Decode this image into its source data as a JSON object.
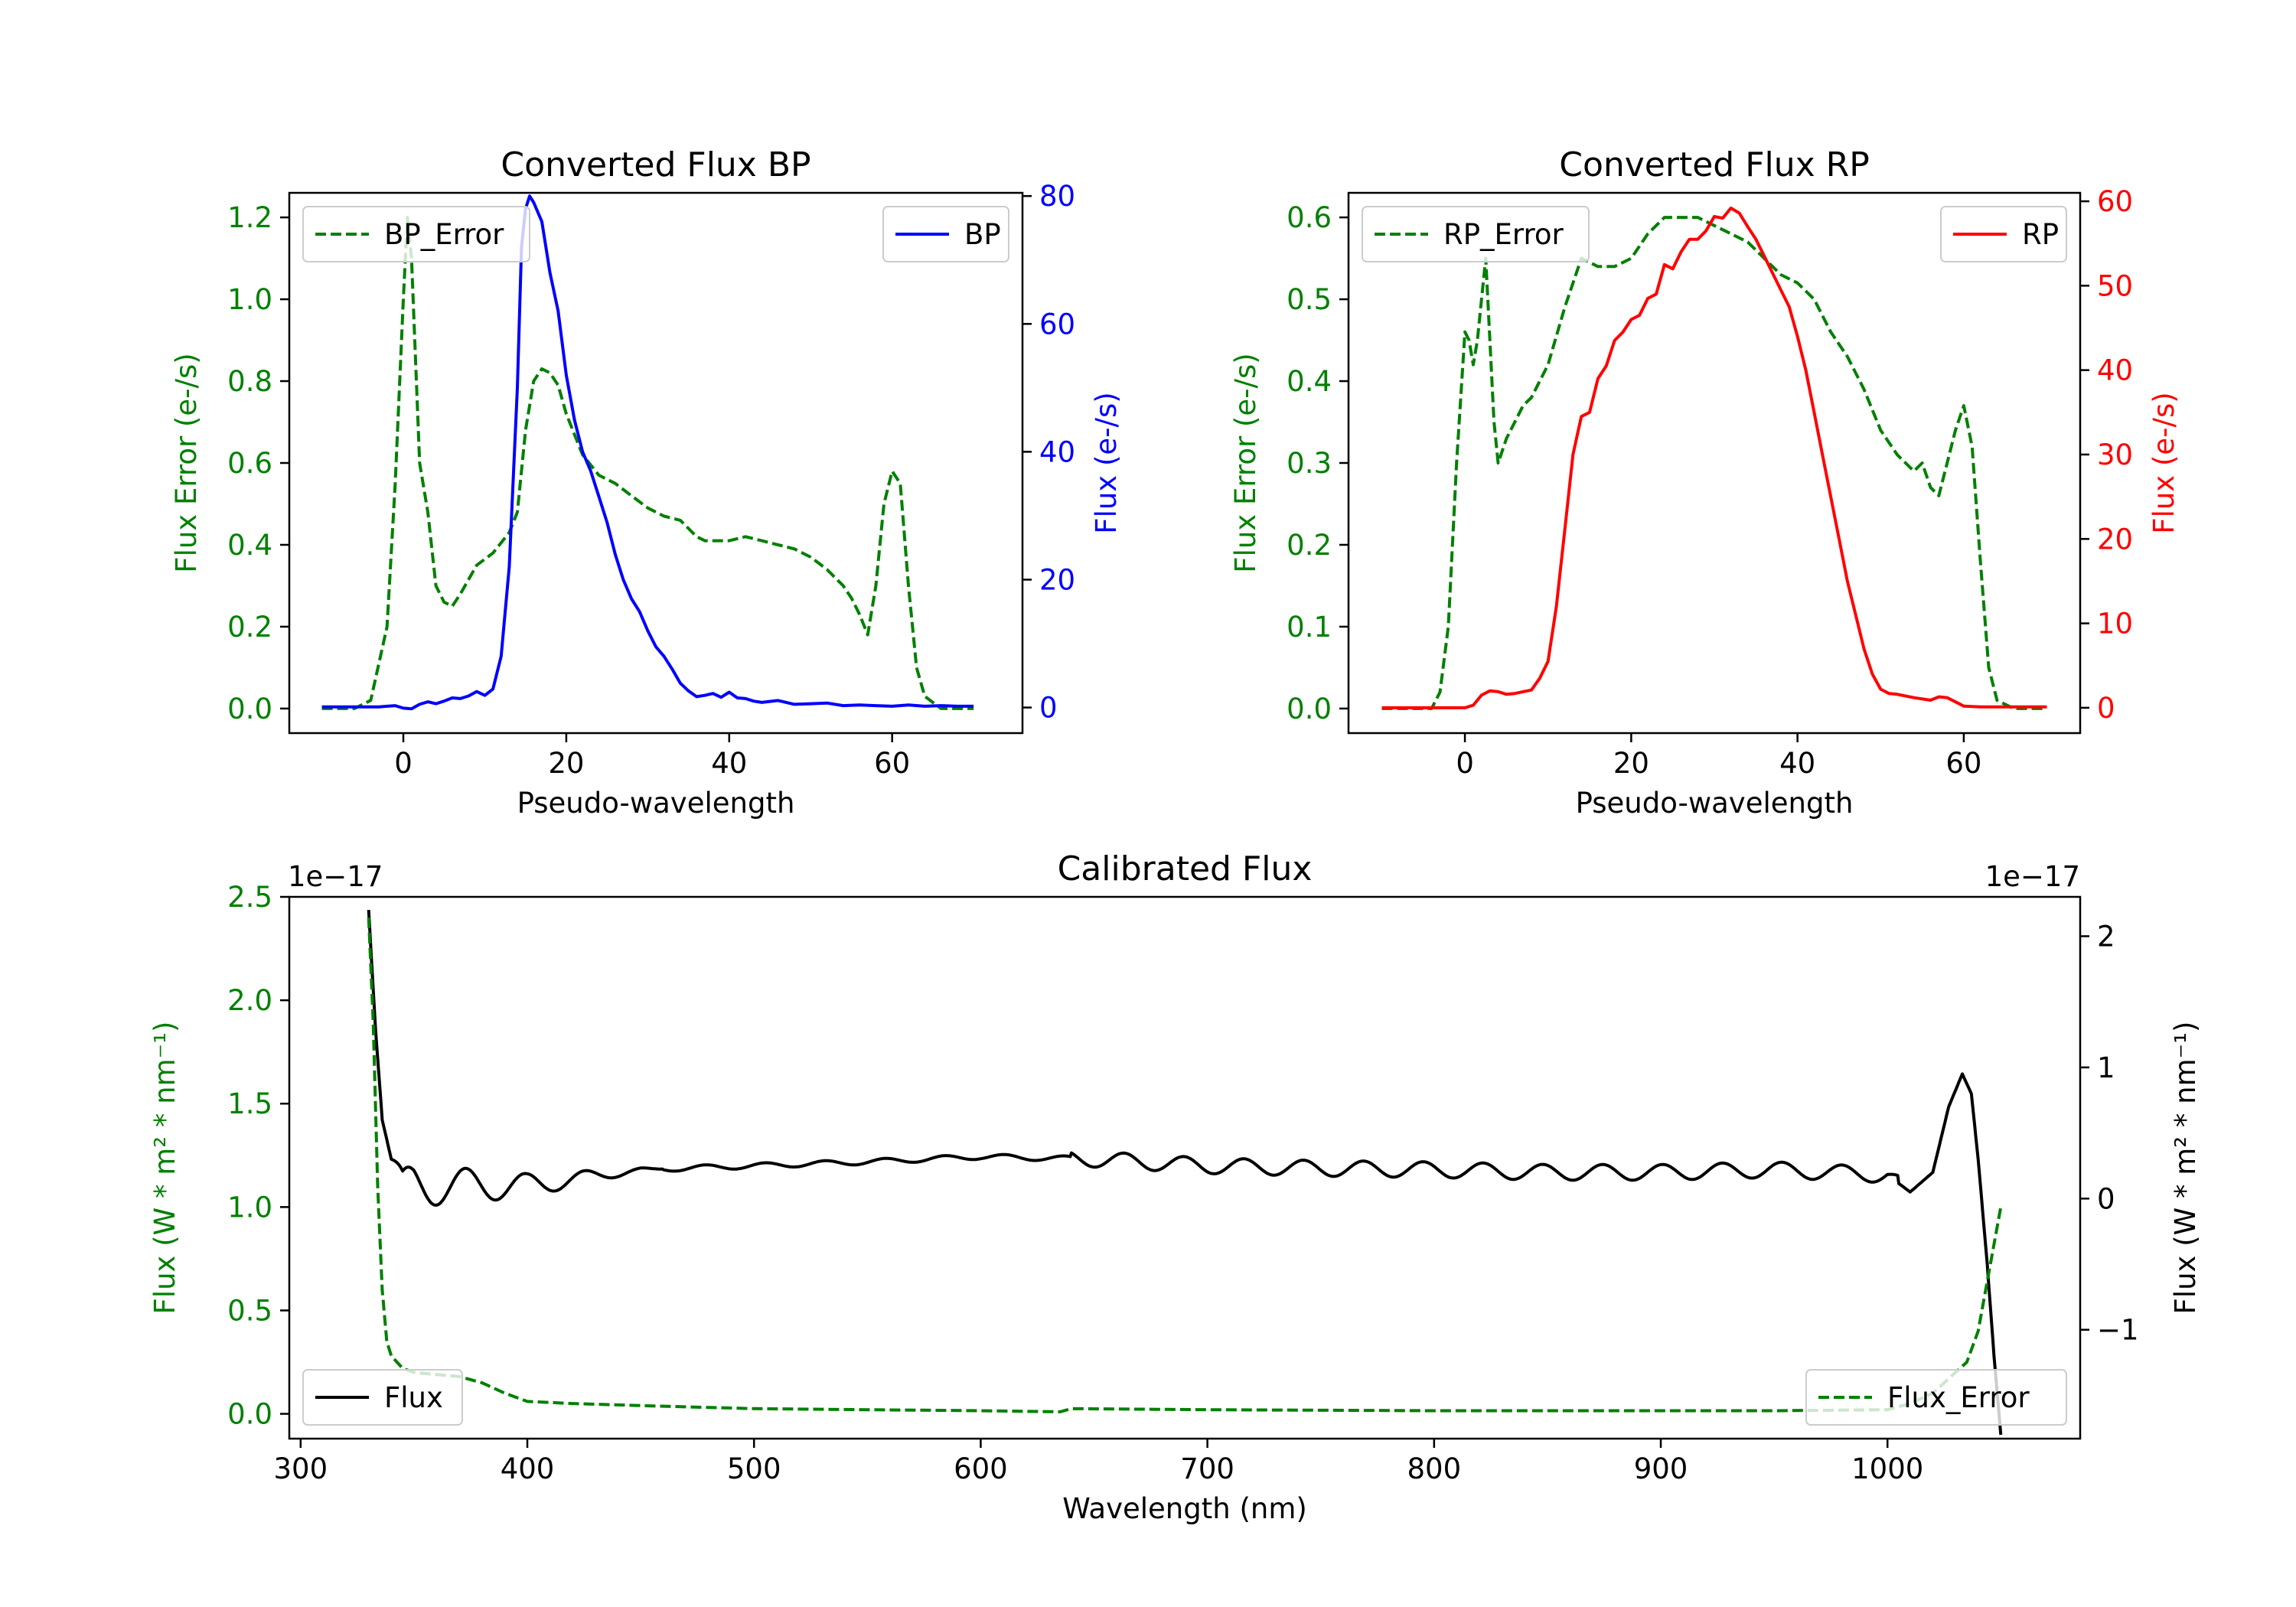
{
  "chart_data": [
    {
      "type": "line",
      "title": "Converted Flux BP",
      "xlabel": "Pseudo-wavelength",
      "xlim": [
        -14,
        76
      ],
      "xticks": [
        0,
        20,
        40,
        60
      ],
      "left_axis": {
        "label": "Flux Error (e-/s)",
        "color": "#008000",
        "ylim": [
          -0.06,
          1.26
        ],
        "ticks": [
          "0.0",
          "0.2",
          "0.4",
          "0.6",
          "0.8",
          "1.0",
          "1.2"
        ],
        "tick_values": [
          0.0,
          0.2,
          0.4,
          0.6,
          0.8,
          1.0,
          1.2
        ]
      },
      "right_axis": {
        "label": "Flux (e-/s)",
        "color": "#0000ff",
        "ylim": [
          -4,
          80.5
        ],
        "ticks": [
          "0",
          "20",
          "40",
          "60",
          "80"
        ],
        "tick_values": [
          0,
          20,
          40,
          60,
          80
        ]
      },
      "series": [
        {
          "name": "BP_Error",
          "axis": "left",
          "style": "dashed",
          "color": "#008000",
          "legend": "top-left",
          "x": [
            -10,
            -6,
            -4,
            -2,
            -1,
            0,
            0.5,
            1,
            1.5,
            2,
            3,
            4,
            5,
            6,
            7,
            9,
            11,
            13,
            14,
            15,
            16,
            17,
            18,
            19,
            20,
            22,
            24,
            26,
            28,
            30,
            32,
            34,
            36,
            37,
            38,
            40,
            42,
            44,
            46,
            48,
            50,
            52,
            54,
            55,
            56,
            57,
            58,
            59,
            60,
            61,
            62,
            63,
            64,
            66,
            68,
            70
          ],
          "values": [
            0.0,
            0.0,
            0.02,
            0.2,
            0.55,
            1.0,
            1.2,
            1.1,
            0.85,
            0.6,
            0.48,
            0.3,
            0.26,
            0.25,
            0.28,
            0.35,
            0.38,
            0.43,
            0.48,
            0.68,
            0.8,
            0.83,
            0.82,
            0.79,
            0.72,
            0.62,
            0.57,
            0.55,
            0.52,
            0.49,
            0.47,
            0.46,
            0.42,
            0.41,
            0.41,
            0.41,
            0.42,
            0.41,
            0.4,
            0.39,
            0.37,
            0.34,
            0.3,
            0.27,
            0.23,
            0.18,
            0.3,
            0.5,
            0.58,
            0.55,
            0.3,
            0.1,
            0.03,
            0.0,
            0.0,
            0.0
          ]
        },
        {
          "name": "BP",
          "axis": "right",
          "style": "solid",
          "color": "#0000ff",
          "legend": "top-right",
          "x": [
            -10,
            -6,
            -3,
            -1,
            0,
            1,
            2,
            3,
            4,
            5,
            6,
            7,
            8,
            9,
            10,
            11,
            12,
            13,
            14,
            14.5,
            15,
            15.5,
            16,
            17,
            18,
            19,
            20,
            21,
            22,
            23,
            24,
            25,
            26,
            27,
            28,
            29,
            30,
            31,
            32,
            33,
            34,
            35,
            36,
            37,
            38,
            39,
            40,
            41,
            42,
            43,
            44,
            46,
            48,
            50,
            52,
            54,
            56,
            58,
            60,
            62,
            64,
            66,
            68,
            70
          ],
          "values": [
            0.1,
            0.1,
            0.1,
            0.3,
            -0.1,
            -0.2,
            0.5,
            0.9,
            0.6,
            1.0,
            1.5,
            1.4,
            1.8,
            2.5,
            1.9,
            2.9,
            8.0,
            22,
            50,
            72,
            78,
            80,
            79,
            76,
            68,
            62,
            52,
            45,
            40,
            37,
            33,
            29,
            24,
            20,
            17,
            15,
            12,
            9.5,
            8.0,
            6.0,
            3.8,
            2.6,
            1.7,
            1.9,
            2.2,
            1.6,
            2.4,
            1.5,
            1.4,
            1.0,
            0.8,
            1.1,
            0.5,
            0.6,
            0.7,
            0.3,
            0.4,
            0.3,
            0.2,
            0.4,
            0.2,
            0.3,
            0.2,
            0.2
          ]
        }
      ],
      "legend_entries": [
        "BP_Error",
        "BP"
      ]
    },
    {
      "type": "line",
      "title": "Converted Flux RP",
      "xlabel": "Pseudo-wavelength",
      "xlim": [
        -14,
        74
      ],
      "xticks": [
        0,
        20,
        40,
        60
      ],
      "left_axis": {
        "label": "Flux Error (e-/s)",
        "color": "#008000",
        "ylim": [
          -0.03,
          0.63
        ],
        "ticks": [
          "0.0",
          "0.1",
          "0.2",
          "0.3",
          "0.4",
          "0.5",
          "0.6"
        ],
        "tick_values": [
          0.0,
          0.1,
          0.2,
          0.3,
          0.4,
          0.5,
          0.6
        ]
      },
      "right_axis": {
        "label": "Flux (e-/s)",
        "color": "#ff0000",
        "ylim": [
          -3,
          61
        ],
        "ticks": [
          "0",
          "10",
          "20",
          "30",
          "40",
          "50",
          "60"
        ],
        "tick_values": [
          0,
          10,
          20,
          30,
          40,
          50,
          60
        ]
      },
      "series": [
        {
          "name": "RP_Error",
          "axis": "left",
          "style": "dashed",
          "color": "#008000",
          "legend": "top-left",
          "x": [
            -10,
            -6,
            -4,
            -3,
            -2,
            -1,
            0,
            0.5,
            1,
            1.5,
            2,
            2.5,
            3,
            3.5,
            4,
            5,
            6,
            7,
            8,
            10,
            12,
            14,
            16,
            18,
            20,
            22,
            24,
            26,
            28,
            30,
            32,
            34,
            36,
            38,
            40,
            42,
            44,
            46,
            48,
            50,
            52,
            54,
            55,
            56,
            57,
            58,
            59,
            60,
            61,
            62,
            63,
            64,
            66,
            68,
            70
          ],
          "values": [
            0.0,
            0.0,
            0.0,
            0.02,
            0.1,
            0.3,
            0.46,
            0.45,
            0.42,
            0.45,
            0.5,
            0.55,
            0.45,
            0.35,
            0.3,
            0.33,
            0.35,
            0.37,
            0.38,
            0.42,
            0.49,
            0.55,
            0.54,
            0.54,
            0.55,
            0.58,
            0.6,
            0.6,
            0.6,
            0.59,
            0.58,
            0.57,
            0.55,
            0.53,
            0.52,
            0.5,
            0.46,
            0.43,
            0.39,
            0.34,
            0.31,
            0.29,
            0.3,
            0.27,
            0.26,
            0.3,
            0.34,
            0.37,
            0.32,
            0.18,
            0.05,
            0.01,
            0.0,
            0.0,
            0.0
          ]
        },
        {
          "name": "RP",
          "axis": "right",
          "style": "solid",
          "color": "#ff0000",
          "legend": "top-right",
          "x": [
            -10,
            -4,
            0,
            1,
            2,
            3,
            4,
            5,
            6,
            8,
            9,
            10,
            11,
            12,
            13,
            14,
            15,
            16,
            17,
            18,
            19,
            20,
            21,
            22,
            23,
            24,
            25,
            26,
            27,
            28,
            29,
            30,
            31,
            32,
            33,
            34,
            35,
            36,
            37,
            38,
            39,
            40,
            41,
            42,
            43,
            44,
            45,
            46,
            47,
            48,
            49,
            50,
            51,
            52,
            54,
            56,
            57,
            58,
            60,
            62,
            64,
            66,
            68,
            70
          ],
          "values": [
            0,
            0,
            0,
            0.3,
            1.5,
            2.0,
            1.9,
            1.6,
            1.7,
            2.1,
            3.5,
            5.5,
            12,
            21,
            30,
            34.5,
            35,
            39,
            40.5,
            43.5,
            44.5,
            46,
            46.5,
            48.5,
            49,
            52.5,
            52,
            54,
            55.5,
            55.5,
            56.5,
            58.2,
            58,
            59.2,
            58.6,
            57,
            55.5,
            53.5,
            51.5,
            49.5,
            47.5,
            44,
            40,
            35,
            30,
            25,
            20,
            15,
            11,
            7,
            4,
            2.2,
            1.7,
            1.6,
            1.2,
            0.9,
            1.3,
            1.2,
            0.2,
            0.1,
            0.1,
            0.1,
            0.1,
            0.1
          ]
        }
      ],
      "legend_entries": [
        "RP_Error",
        "RP"
      ]
    },
    {
      "type": "line",
      "title": "Calibrated Flux",
      "xlabel": "Wavelength (nm)",
      "xlim": [
        295,
        1085
      ],
      "xticks": [
        300,
        400,
        500,
        600,
        700,
        800,
        900,
        1000
      ],
      "left_axis": {
        "label": "Flux (W * m² * nm⁻¹)",
        "color": "#008000",
        "offset_label": "1e−17",
        "ylim": [
          -0.12,
          2.5
        ],
        "ticks": [
          "0.0",
          "0.5",
          "1.0",
          "1.5",
          "2.0",
          "2.5"
        ],
        "tick_values": [
          0.0,
          0.5,
          1.0,
          1.5,
          2.0,
          2.5
        ]
      },
      "right_axis": {
        "label": "Flux (W * m² * nm⁻¹)",
        "color": "#000000",
        "offset_label": "1e−17",
        "ylim": [
          -1.83,
          2.3
        ],
        "ticks": [
          "−1",
          "0",
          "1",
          "2"
        ],
        "tick_values": [
          -1,
          0,
          1,
          2
        ]
      },
      "series": [
        {
          "name": "Flux",
          "axis": "right",
          "style": "solid",
          "color": "#000000",
          "legend": "bottom-left",
          "generator": "oscillating flux around 0.25e-17 with ripple near 330-450 nm and 650-1010 nm, peak ~0.95e-17 at 1033 nm, falling to -1.8e-17 at 1050 nm",
          "x": [
            330,
            333,
            336,
            340,
            345,
            350,
            400,
            450,
            500,
            550,
            600,
            650,
            700,
            750,
            800,
            850,
            900,
            950,
            1000,
            1010,
            1020,
            1027,
            1033,
            1037,
            1040,
            1044,
            1047,
            1050
          ],
          "values": [
            2.2,
            1.3,
            0.6,
            0.3,
            0.05,
            0.1,
            0.1,
            0.22,
            0.25,
            0.28,
            0.32,
            0.3,
            0.25,
            0.23,
            0.22,
            0.2,
            0.2,
            0.22,
            0.18,
            0.05,
            0.2,
            0.7,
            0.95,
            0.8,
            0.3,
            -0.5,
            -1.2,
            -1.8
          ]
        },
        {
          "name": "Flux_Error",
          "axis": "left",
          "style": "dashed",
          "color": "#008000",
          "legend": "bottom-right",
          "x": [
            330,
            332,
            334,
            336,
            338,
            340,
            345,
            350,
            360,
            370,
            380,
            390,
            400,
            420,
            450,
            500,
            550,
            600,
            635,
            640,
            700,
            800,
            900,
            950,
            1000,
            1010,
            1020,
            1025,
            1030,
            1035,
            1040,
            1045,
            1050
          ],
          "values": [
            2.4,
            1.9,
            1.1,
            0.6,
            0.35,
            0.28,
            0.22,
            0.2,
            0.19,
            0.18,
            0.15,
            0.1,
            0.06,
            0.05,
            0.04,
            0.025,
            0.02,
            0.015,
            0.01,
            0.025,
            0.02,
            0.015,
            0.015,
            0.015,
            0.02,
            0.05,
            0.1,
            0.15,
            0.2,
            0.25,
            0.4,
            0.7,
            1.0
          ]
        }
      ],
      "legend_entries": [
        "Flux",
        "Flux_Error"
      ]
    }
  ]
}
